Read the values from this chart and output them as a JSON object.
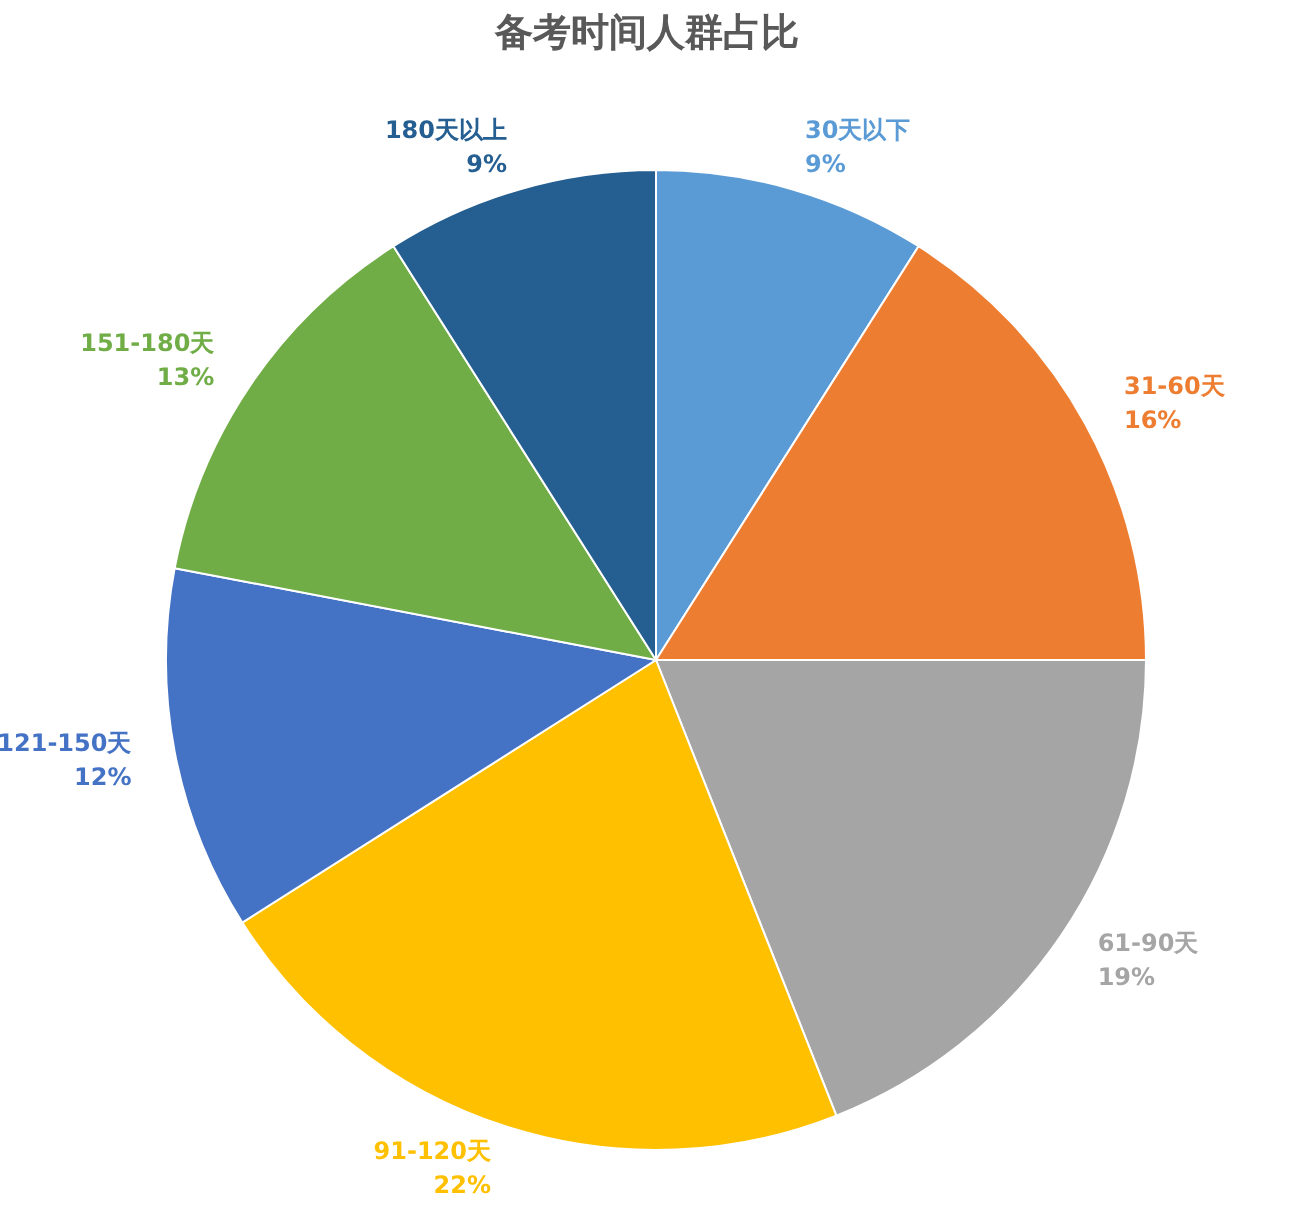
{
  "chart_data": {
    "type": "pie",
    "title": "备考时间人群占比",
    "categories": [
      "30天以下",
      "31-60天",
      "61-90天",
      "91-120天",
      "121-150天",
      "151-180天",
      "180天以上"
    ],
    "values": [
      9,
      16,
      19,
      22,
      12,
      13,
      9
    ],
    "value_labels": [
      "9%",
      "16%",
      "19%",
      "22%",
      "12%",
      "13%",
      "9%"
    ],
    "colors": [
      "#5b9bd5",
      "#ed7d31",
      "#a5a5a5",
      "#ffc000",
      "#4472c4",
      "#70ad47",
      "#255e91"
    ],
    "legend": false
  }
}
